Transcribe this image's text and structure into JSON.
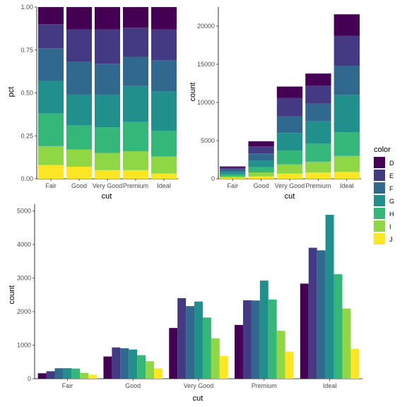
{
  "palette": {
    "D": "#440154",
    "E": "#443A83",
    "F": "#31688E",
    "G": "#21908C",
    "H": "#35B779",
    "I": "#8FD744",
    "J": "#FDE725"
  },
  "legend": {
    "title": "color",
    "keys": [
      "D",
      "E",
      "F",
      "G",
      "H",
      "I",
      "J"
    ],
    "placement": "right"
  },
  "chart_data": [
    {
      "type": "bar",
      "variant": "stacked-fill",
      "categories": [
        "Fair",
        "Good",
        "Very Good",
        "Premium",
        "Ideal"
      ],
      "series": [
        {
          "name": "D",
          "values": [
            0.1,
            0.13,
            0.13,
            0.12,
            0.13
          ]
        },
        {
          "name": "E",
          "values": [
            0.14,
            0.19,
            0.2,
            0.17,
            0.18
          ]
        },
        {
          "name": "F",
          "values": [
            0.19,
            0.19,
            0.18,
            0.17,
            0.18
          ]
        },
        {
          "name": "G",
          "values": [
            0.19,
            0.18,
            0.19,
            0.21,
            0.23
          ]
        },
        {
          "name": "H",
          "values": [
            0.19,
            0.14,
            0.15,
            0.17,
            0.15
          ]
        },
        {
          "name": "I",
          "values": [
            0.11,
            0.1,
            0.1,
            0.11,
            0.1
          ]
        },
        {
          "name": "J",
          "values": [
            0.08,
            0.07,
            0.05,
            0.05,
            0.03
          ]
        }
      ],
      "xlabel": "cut",
      "ylabel": "pct",
      "ylim": [
        0,
        1
      ],
      "yticks": [
        0,
        0.25,
        0.5,
        0.75,
        1
      ],
      "yticklabels": [
        "0.00",
        "0.25",
        "0.50",
        "0.75",
        "1.00"
      ]
    },
    {
      "type": "bar",
      "variant": "stacked",
      "categories": [
        "Fair",
        "Good",
        "Very Good",
        "Premium",
        "Ideal"
      ],
      "series": [
        {
          "name": "D",
          "values": [
            163,
            662,
            1513,
            1603,
            2834
          ]
        },
        {
          "name": "E",
          "values": [
            224,
            933,
            2400,
            2337,
            3903
          ]
        },
        {
          "name": "F",
          "values": [
            312,
            909,
            2164,
            2331,
            3826
          ]
        },
        {
          "name": "G",
          "values": [
            314,
            871,
            2299,
            2924,
            4884
          ]
        },
        {
          "name": "H",
          "values": [
            303,
            702,
            1824,
            2360,
            3115
          ]
        },
        {
          "name": "I",
          "values": [
            175,
            522,
            1204,
            1428,
            2093
          ]
        },
        {
          "name": "J",
          "values": [
            119,
            307,
            678,
            808,
            896
          ]
        }
      ],
      "xlabel": "cut",
      "ylabel": "count",
      "ylim": [
        0,
        22500
      ],
      "yticks": [
        0,
        5000,
        10000,
        15000,
        20000
      ],
      "yticklabels": [
        "0",
        "5000",
        "10000",
        "15000",
        "20000"
      ]
    },
    {
      "type": "bar",
      "variant": "dodged",
      "categories": [
        "Fair",
        "Good",
        "Very Good",
        "Premium",
        "Ideal"
      ],
      "series": [
        {
          "name": "D",
          "values": [
            163,
            662,
            1513,
            1603,
            2834
          ]
        },
        {
          "name": "E",
          "values": [
            224,
            933,
            2400,
            2337,
            3903
          ]
        },
        {
          "name": "F",
          "values": [
            312,
            909,
            2164,
            2331,
            3826
          ]
        },
        {
          "name": "G",
          "values": [
            314,
            871,
            2299,
            2924,
            4884
          ]
        },
        {
          "name": "H",
          "values": [
            303,
            702,
            1824,
            2360,
            3115
          ]
        },
        {
          "name": "I",
          "values": [
            175,
            522,
            1204,
            1428,
            2093
          ]
        },
        {
          "name": "J",
          "values": [
            119,
            307,
            678,
            808,
            896
          ]
        }
      ],
      "xlabel": "cut",
      "ylabel": "count",
      "ylim": [
        0,
        5200
      ],
      "yticks": [
        0,
        1000,
        2000,
        3000,
        4000,
        5000
      ],
      "yticklabels": [
        "0",
        "1000",
        "2000",
        "3000",
        "4000",
        "5000"
      ]
    }
  ]
}
